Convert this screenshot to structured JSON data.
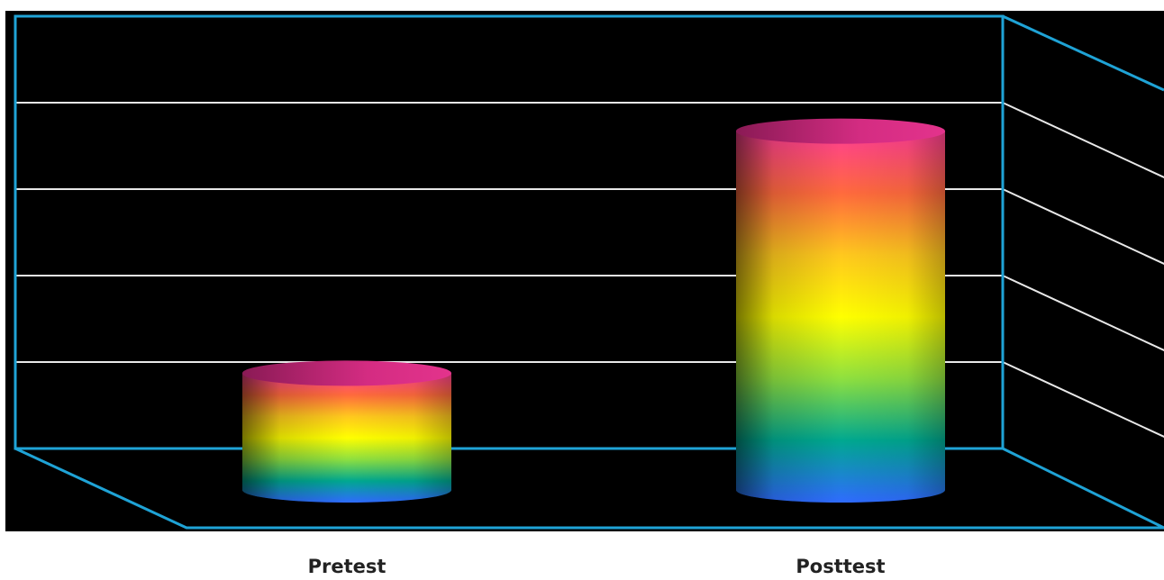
{
  "colors": {
    "plot_background": "#000000",
    "frame": "#1fa3d6",
    "gridlines": "#e8e8e8",
    "label_text": "#222222",
    "gradient": [
      "#ff3d94",
      "#ff6a3d",
      "#ffc81e",
      "#ffff00",
      "#8ee040",
      "#00a890",
      "#2f6bff"
    ]
  },
  "chart_data": {
    "type": "bar",
    "bar_shape": "3d-cylinder",
    "categories": [
      "Pretest",
      "Posttest"
    ],
    "values": [
      1.35,
      4.15
    ],
    "ylim": [
      0,
      5
    ],
    "yticks": [
      0,
      1,
      2,
      3,
      4,
      5
    ],
    "grid": true,
    "legend": "none",
    "title": "",
    "xlabel": "",
    "ylabel": ""
  }
}
